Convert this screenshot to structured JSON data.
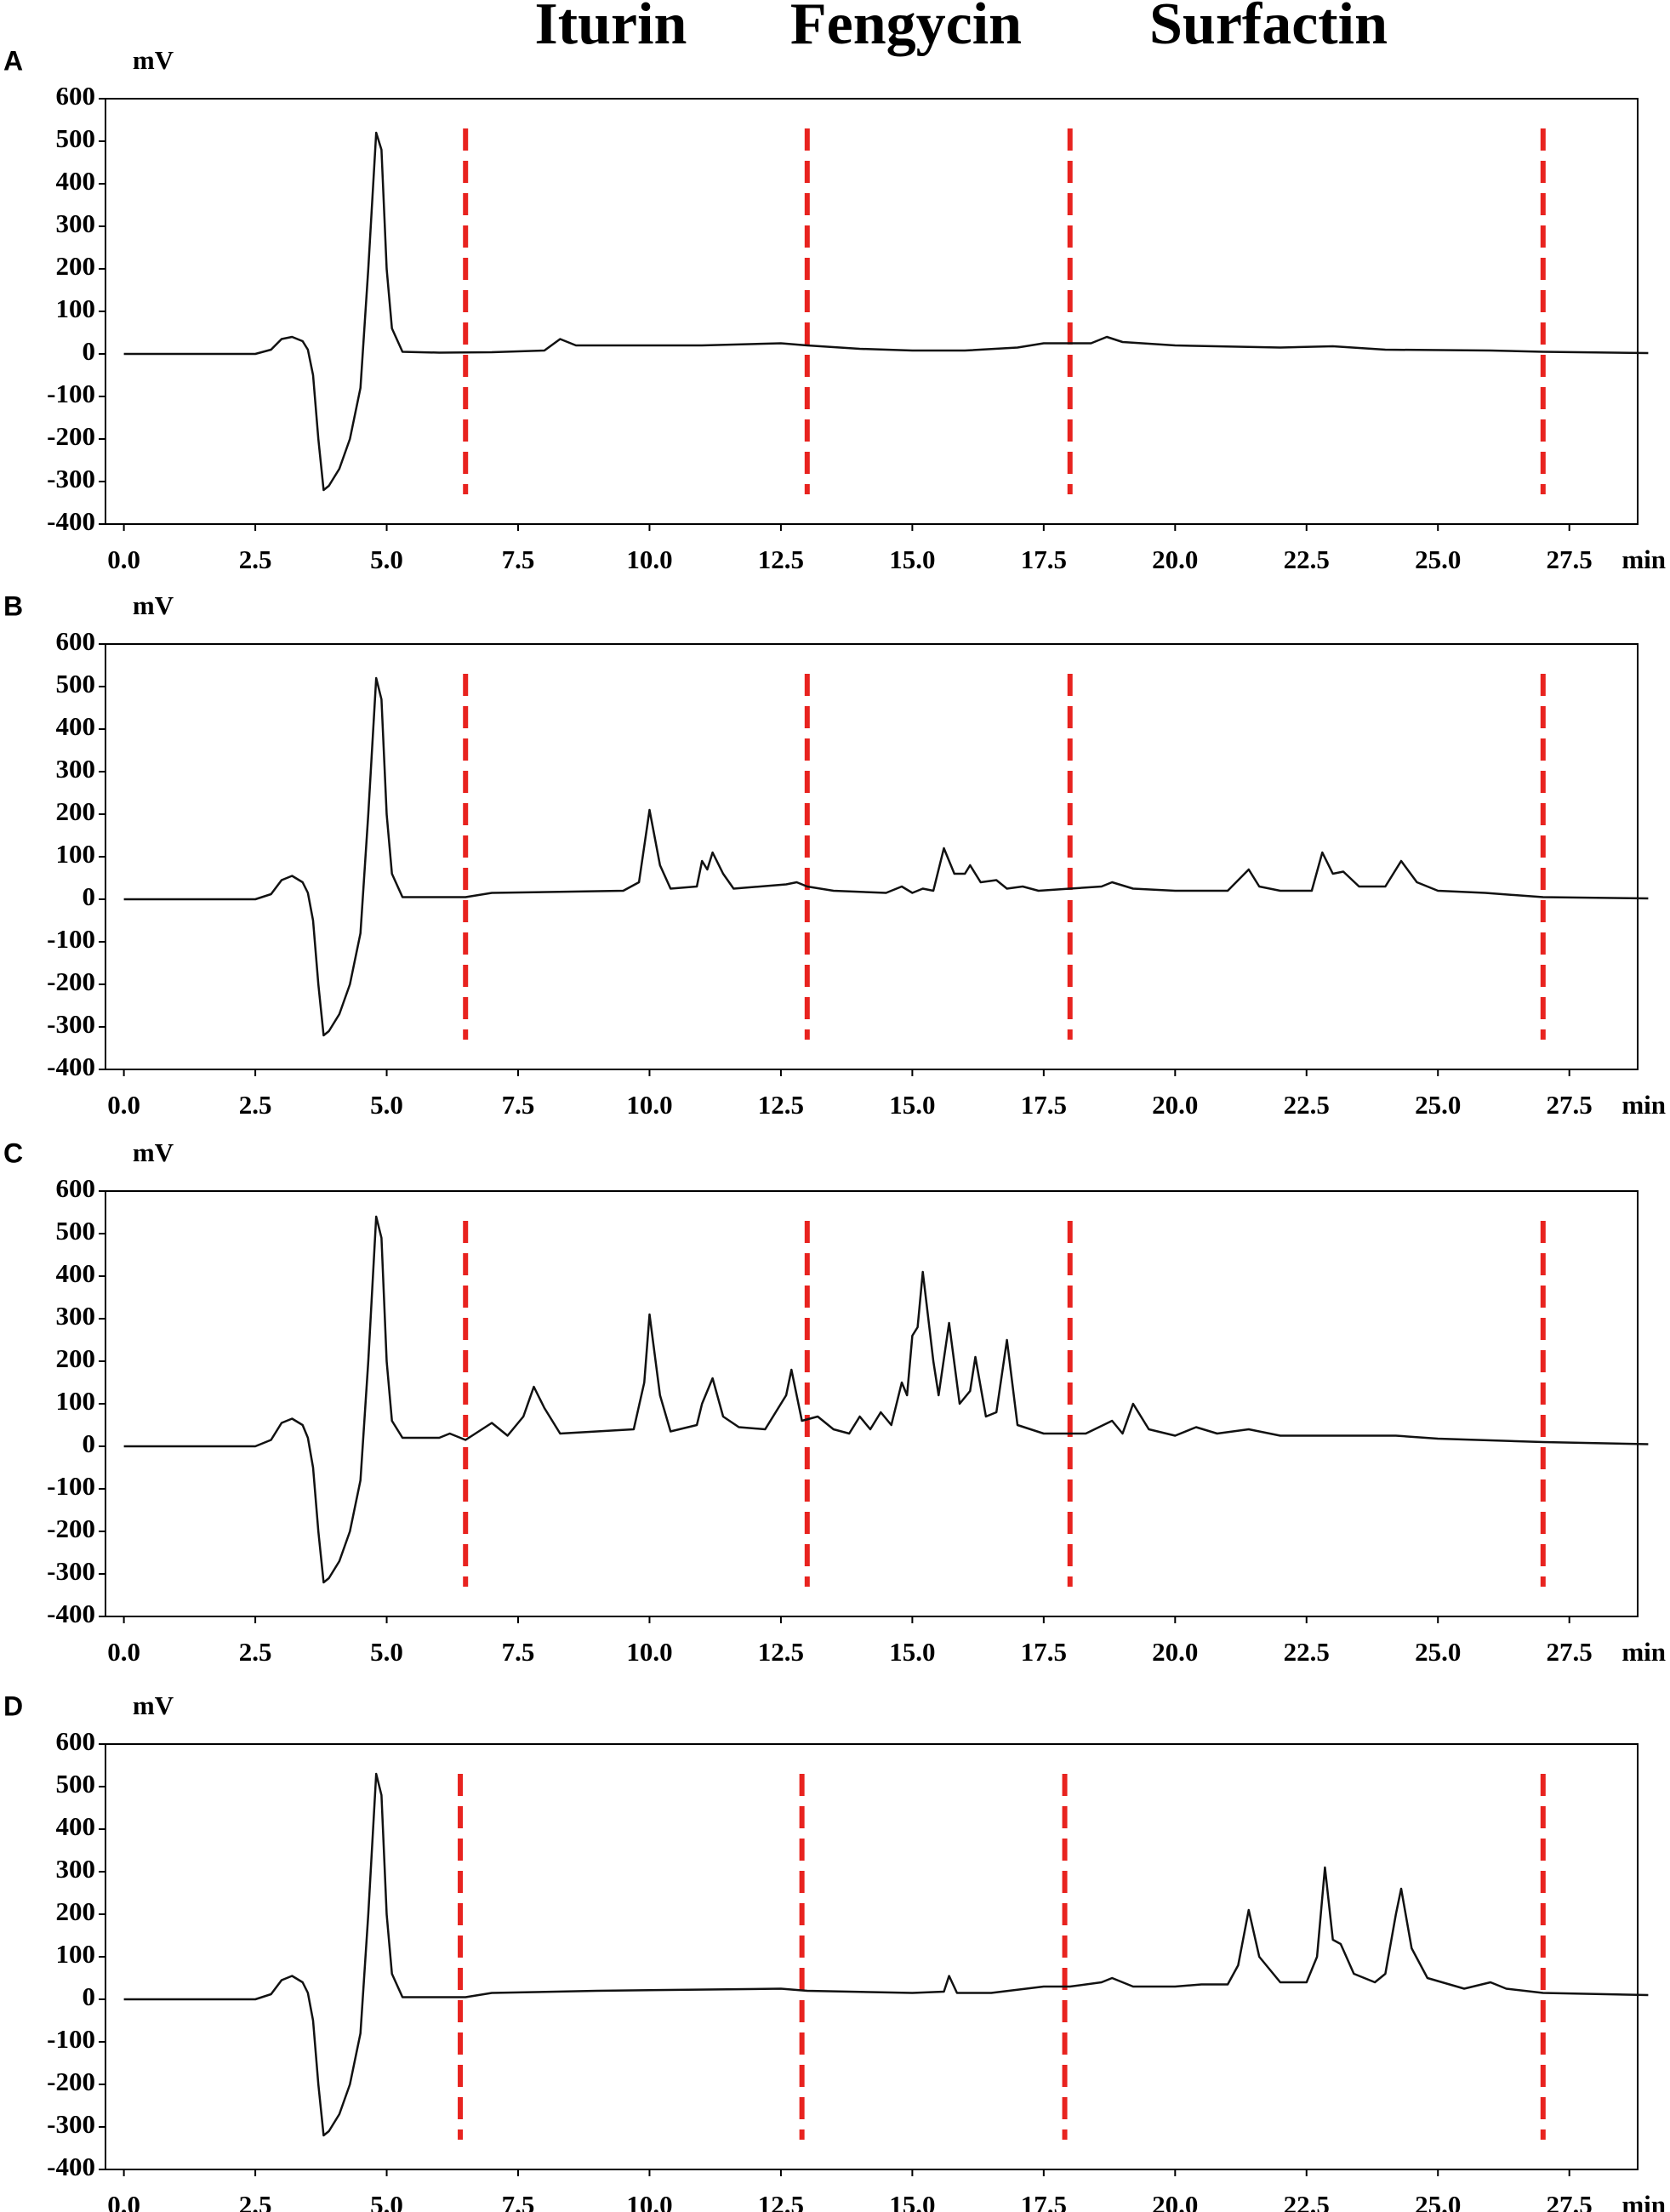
{
  "header_labels": [
    "Iturin",
    "Fengycin",
    "Surfactin"
  ],
  "chart_data": [
    {
      "type": "line",
      "panel": "A",
      "y_unit": "mV",
      "x_unit": "min",
      "xlim": [
        -0.35,
        28.8
      ],
      "ylim": [
        -400,
        600
      ],
      "yticks": [
        -400,
        -300,
        -200,
        -100,
        0,
        100,
        200,
        300,
        400,
        500,
        600
      ],
      "xticks": [
        {
          "value": 0,
          "label": "0.0"
        },
        2.5,
        {
          "value": 5,
          "label": "5.0"
        },
        7.5,
        {
          "value": 10,
          "label": "10.0"
        },
        12.5,
        {
          "value": 15,
          "label": "15.0"
        },
        17.5,
        {
          "value": 20,
          "label": "20.0"
        },
        22.5,
        {
          "value": 25,
          "label": "25.0"
        },
        27.5
      ],
      "dividers": [
        6.5,
        13.0,
        18.0,
        27.0
      ],
      "divider_color": "#e8231f",
      "x": [
        0,
        2.5,
        2.8,
        3.0,
        3.2,
        3.4,
        3.5,
        3.6,
        3.7,
        3.8,
        3.9,
        4.1,
        4.3,
        4.5,
        4.65,
        4.8,
        4.9,
        5.0,
        5.1,
        5.3,
        6.0,
        7.0,
        8.0,
        8.3,
        8.6,
        9.5,
        11,
        12.5,
        13,
        14,
        15,
        16,
        17,
        17.5,
        18,
        18.4,
        18.7,
        19,
        20,
        22,
        23,
        24,
        26,
        27,
        29
      ],
      "series": [
        {
          "color": "#111111",
          "values": [
            0,
            0,
            10,
            35,
            40,
            30,
            10,
            -50,
            -200,
            -320,
            -310,
            -270,
            -200,
            -80,
            200,
            520,
            480,
            200,
            60,
            5,
            3,
            4,
            8,
            35,
            20,
            20,
            20,
            25,
            20,
            12,
            8,
            8,
            15,
            25,
            25,
            25,
            40,
            28,
            20,
            15,
            18,
            10,
            8,
            5,
            2
          ]
        }
      ]
    },
    {
      "type": "line",
      "panel": "B",
      "y_unit": "mV",
      "x_unit": "min",
      "xlim": [
        -0.35,
        28.8
      ],
      "ylim": [
        -400,
        600
      ],
      "yticks": [
        -400,
        -300,
        -200,
        -100,
        0,
        100,
        200,
        300,
        400,
        500,
        600
      ],
      "xticks": [
        {
          "value": 0,
          "label": "0.0"
        },
        2.5,
        {
          "value": 5,
          "label": "5.0"
        },
        7.5,
        {
          "value": 10,
          "label": "10.0"
        },
        12.5,
        {
          "value": 15,
          "label": "15.0"
        },
        17.5,
        {
          "value": 20,
          "label": "20.0"
        },
        22.5,
        {
          "value": 25,
          "label": "25.0"
        },
        27.5
      ],
      "dividers": [
        6.5,
        13.0,
        18.0,
        27.0
      ],
      "divider_color": "#e8231f",
      "x": [
        0,
        2.5,
        2.8,
        3.0,
        3.2,
        3.4,
        3.5,
        3.6,
        3.7,
        3.8,
        3.9,
        4.1,
        4.3,
        4.5,
        4.65,
        4.8,
        4.9,
        5.0,
        5.1,
        5.3,
        6.5,
        7.0,
        9.5,
        9.8,
        10.0,
        10.2,
        10.4,
        10.9,
        11.0,
        11.1,
        11.2,
        11.4,
        11.6,
        12.6,
        12.8,
        13.0,
        13.5,
        14.5,
        14.8,
        15.0,
        15.2,
        15.4,
        15.6,
        15.8,
        16.0,
        16.1,
        16.3,
        16.6,
        16.8,
        17.1,
        17.4,
        18,
        18.6,
        18.8,
        19.2,
        20,
        21,
        21.4,
        21.6,
        22,
        22.6,
        22.8,
        23.0,
        23.2,
        23.5,
        24.0,
        24.3,
        24.6,
        25,
        25.9,
        27,
        29
      ],
      "series": [
        {
          "color": "#111111",
          "values": [
            0,
            0,
            12,
            45,
            55,
            40,
            15,
            -50,
            -200,
            -320,
            -310,
            -270,
            -200,
            -80,
            200,
            520,
            470,
            200,
            60,
            5,
            5,
            15,
            20,
            40,
            210,
            80,
            25,
            30,
            90,
            70,
            110,
            60,
            25,
            35,
            40,
            30,
            20,
            15,
            30,
            15,
            25,
            20,
            120,
            60,
            60,
            80,
            40,
            45,
            25,
            30,
            20,
            25,
            30,
            40,
            25,
            20,
            20,
            70,
            30,
            20,
            20,
            110,
            60,
            65,
            30,
            30,
            90,
            40,
            20,
            15,
            5,
            2
          ]
        }
      ]
    },
    {
      "type": "line",
      "panel": "C",
      "y_unit": "mV",
      "x_unit": "min",
      "xlim": [
        -0.35,
        28.8
      ],
      "ylim": [
        -400,
        600
      ],
      "yticks": [
        -400,
        -300,
        -200,
        -100,
        0,
        100,
        200,
        300,
        400,
        500,
        600
      ],
      "xticks": [
        {
          "value": 0,
          "label": "0.0"
        },
        2.5,
        {
          "value": 5,
          "label": "5.0"
        },
        7.5,
        {
          "value": 10,
          "label": "10.0"
        },
        12.5,
        {
          "value": 15,
          "label": "15.0"
        },
        17.5,
        {
          "value": 20,
          "label": "20.0"
        },
        22.5,
        {
          "value": 25,
          "label": "25.0"
        },
        27.5
      ],
      "dividers": [
        6.5,
        13.0,
        18.0,
        27.0
      ],
      "divider_color": "#e8231f",
      "x": [
        0,
        2.5,
        2.8,
        3.0,
        3.2,
        3.4,
        3.5,
        3.6,
        3.7,
        3.8,
        3.9,
        4.1,
        4.3,
        4.5,
        4.65,
        4.8,
        4.9,
        5.0,
        5.1,
        5.3,
        6.0,
        6.2,
        6.5,
        7.0,
        7.3,
        7.6,
        7.8,
        8.0,
        8.3,
        9.0,
        9.7,
        9.9,
        10.0,
        10.2,
        10.4,
        10.9,
        11.0,
        11.2,
        11.4,
        11.7,
        12.2,
        12.6,
        12.7,
        12.9,
        13.2,
        13.5,
        13.8,
        14.0,
        14.2,
        14.4,
        14.6,
        14.8,
        14.9,
        15.0,
        15.1,
        15.2,
        15.4,
        15.5,
        15.7,
        15.9,
        16.1,
        16.2,
        16.4,
        16.6,
        16.8,
        17.0,
        17.5,
        18.3,
        18.8,
        19.0,
        19.2,
        19.5,
        20,
        20.4,
        20.8,
        21.4,
        22,
        22.5,
        23,
        24.2,
        25,
        27,
        29
      ],
      "series": [
        {
          "color": "#111111",
          "values": [
            0,
            0,
            15,
            55,
            65,
            50,
            20,
            -50,
            -200,
            -320,
            -310,
            -270,
            -200,
            -80,
            200,
            540,
            490,
            200,
            60,
            20,
            20,
            30,
            15,
            55,
            25,
            70,
            140,
            90,
            30,
            35,
            40,
            150,
            310,
            120,
            35,
            50,
            100,
            160,
            70,
            45,
            40,
            120,
            180,
            60,
            70,
            40,
            30,
            70,
            40,
            80,
            50,
            150,
            120,
            260,
            280,
            410,
            200,
            120,
            290,
            100,
            130,
            210,
            70,
            80,
            250,
            50,
            30,
            30,
            60,
            30,
            100,
            40,
            25,
            45,
            30,
            40,
            25,
            25,
            25,
            25,
            18,
            10,
            5
          ]
        }
      ]
    },
    {
      "type": "line",
      "panel": "D",
      "y_unit": "mV",
      "x_unit": "min",
      "xlim": [
        -0.35,
        28.8
      ],
      "ylim": [
        -400,
        600
      ],
      "yticks": [
        -400,
        -300,
        -200,
        -100,
        0,
        100,
        200,
        300,
        400,
        500,
        600
      ],
      "xticks": [
        {
          "value": 0,
          "label": "0.0"
        },
        2.5,
        {
          "value": 5,
          "label": "5.0"
        },
        7.5,
        {
          "value": 10,
          "label": "10.0"
        },
        12.5,
        {
          "value": 15,
          "label": "15.0"
        },
        17.5,
        {
          "value": 20,
          "label": "20.0"
        },
        22.5,
        {
          "value": 25,
          "label": "25.0"
        },
        27.5
      ],
      "dividers": [
        6.4,
        12.9,
        17.9,
        27.0
      ],
      "divider_color": "#e8231f",
      "x": [
        0,
        2.5,
        2.8,
        3.0,
        3.2,
        3.4,
        3.5,
        3.6,
        3.7,
        3.8,
        3.9,
        4.1,
        4.3,
        4.5,
        4.65,
        4.8,
        4.9,
        5.0,
        5.1,
        5.3,
        6.5,
        7.0,
        9,
        12.5,
        13,
        15,
        15.6,
        15.7,
        15.85,
        16.5,
        17.5,
        18,
        18.6,
        18.8,
        19.2,
        20,
        20.5,
        21.0,
        21.2,
        21.4,
        21.6,
        22.0,
        22.5,
        22.7,
        22.85,
        23.0,
        23.15,
        23.4,
        23.8,
        24.0,
        24.2,
        24.3,
        24.5,
        24.8,
        25.5,
        26,
        26.3,
        27,
        29
      ],
      "series": [
        {
          "color": "#111111",
          "values": [
            0,
            0,
            12,
            45,
            55,
            40,
            15,
            -50,
            -200,
            -320,
            -310,
            -270,
            -200,
            -80,
            200,
            530,
            480,
            200,
            60,
            5,
            5,
            15,
            20,
            25,
            20,
            15,
            18,
            55,
            15,
            15,
            30,
            30,
            40,
            50,
            30,
            30,
            35,
            35,
            80,
            210,
            100,
            40,
            40,
            100,
            310,
            140,
            130,
            60,
            40,
            60,
            200,
            260,
            120,
            50,
            25,
            40,
            25,
            15,
            10
          ]
        }
      ]
    }
  ]
}
